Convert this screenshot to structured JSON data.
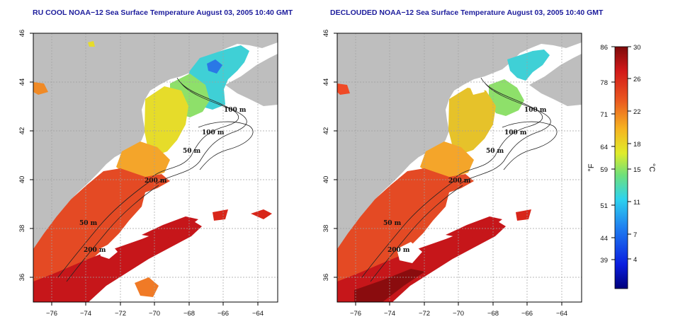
{
  "panels": [
    {
      "id": "ru-cool",
      "title": "RU COOL NOAA−12 Sea Surface Temperature August 03, 2005 10:40 GMT",
      "variant": "raw"
    },
    {
      "id": "decloud",
      "title": "DECLOUDED NOAA−12 Sea Surface Temperature August 03, 2005 10:40 GMT",
      "variant": "declouded"
    }
  ],
  "lon_ticks": [
    "−76",
    "−74",
    "−72",
    "−70",
    "−68",
    "−66",
    "−64"
  ],
  "lat_ticks": [
    "46",
    "44",
    "42",
    "40",
    "38",
    "36"
  ],
  "isobath_labels": [
    "100 m",
    "100 m",
    "50 m",
    "200 m",
    "50 m",
    "200 m"
  ],
  "colorbar": {
    "fahrenheit_ticks": [
      "86",
      "78",
      "71",
      "64",
      "59",
      "51",
      "44",
      "39"
    ],
    "celsius_ticks": [
      "30",
      "26",
      "22",
      "18",
      "15",
      "11",
      "7",
      "4"
    ],
    "fahrenheit_unit": "°F",
    "celsius_unit": "°C",
    "range_c": [
      0,
      30
    ]
  },
  "colors": {
    "land": "#bebebe",
    "ocean_nodata": "#ffffff",
    "title": "#1c1c9c",
    "grid": "#a0a0a0"
  }
}
